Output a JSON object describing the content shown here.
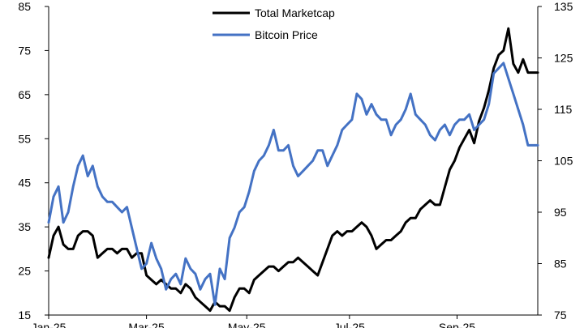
{
  "chart_data": {
    "type": "line",
    "title": "",
    "xlabel": "",
    "grid": false,
    "legend_position": "top-center",
    "y_left": {
      "ylim": [
        15,
        85
      ],
      "ticks": [
        15,
        25,
        35,
        45,
        55,
        65,
        75,
        85
      ],
      "tick_labels": [
        "15",
        "25",
        "35",
        "45",
        "55",
        "65",
        "75",
        "85"
      ]
    },
    "y_right": {
      "ylim": [
        75,
        135
      ],
      "ticks": [
        75,
        85,
        95,
        105,
        115,
        125,
        135
      ],
      "tick_labels": [
        "75",
        "85",
        "95",
        "105",
        "115",
        "125",
        "135"
      ]
    },
    "x_ticks": [
      {
        "x": 0,
        "label": "Jan-25"
      },
      {
        "x": 40,
        "label": "Mar-25"
      },
      {
        "x": 81,
        "label": "May-25"
      },
      {
        "x": 123,
        "label": "Jul-25"
      },
      {
        "x": 167,
        "label": "Sep-25"
      }
    ],
    "x_range": [
      0,
      200
    ],
    "series": [
      {
        "name": "Total Marketcap",
        "axis": "left",
        "color": "#000000",
        "x": [
          0,
          2,
          4,
          6,
          8,
          10,
          12,
          14,
          16,
          18,
          20,
          22,
          24,
          26,
          28,
          30,
          32,
          34,
          36,
          38,
          40,
          42,
          44,
          46,
          48,
          50,
          52,
          54,
          56,
          58,
          60,
          62,
          64,
          66,
          68,
          70,
          72,
          74,
          76,
          78,
          80,
          82,
          84,
          86,
          88,
          90,
          92,
          94,
          96,
          98,
          100,
          102,
          104,
          106,
          108,
          110,
          112,
          114,
          116,
          118,
          120,
          122,
          124,
          126,
          128,
          130,
          132,
          134,
          136,
          138,
          140,
          142,
          144,
          146,
          148,
          150,
          152,
          154,
          156,
          158,
          160,
          162,
          164,
          166,
          168,
          170,
          172,
          174,
          176,
          178,
          180,
          182,
          184,
          186,
          188,
          190,
          192,
          194,
          196,
          198,
          200
        ],
        "values": [
          28,
          33,
          35,
          31,
          30,
          30,
          33,
          34,
          34,
          33,
          28,
          29,
          30,
          30,
          29,
          30,
          30,
          28,
          29,
          29,
          24,
          23,
          22,
          23,
          22,
          21,
          21,
          20,
          22,
          21,
          19,
          18,
          17,
          16,
          18,
          17,
          17,
          16,
          19,
          21,
          21,
          20,
          23,
          24,
          25,
          26,
          26,
          25,
          26,
          27,
          27,
          28,
          27,
          26,
          25,
          24,
          27,
          30,
          33,
          34,
          33,
          34,
          34,
          35,
          36,
          35,
          33,
          30,
          31,
          32,
          32,
          33,
          34,
          36,
          37,
          37,
          39,
          40,
          41,
          40,
          40,
          44,
          48,
          50,
          53,
          55,
          57,
          54,
          59,
          62,
          66,
          71,
          74,
          75,
          80,
          72,
          70,
          73,
          70,
          70,
          70
        ]
      },
      {
        "name": "Bitcoin Price",
        "axis": "right",
        "color": "#4472c4",
        "x": [
          0,
          2,
          4,
          6,
          8,
          10,
          12,
          14,
          16,
          18,
          20,
          22,
          24,
          26,
          28,
          30,
          32,
          34,
          36,
          38,
          40,
          42,
          44,
          46,
          48,
          50,
          52,
          54,
          56,
          58,
          60,
          62,
          64,
          66,
          68,
          70,
          72,
          74,
          76,
          78,
          80,
          82,
          84,
          86,
          88,
          90,
          92,
          94,
          96,
          98,
          100,
          102,
          104,
          106,
          108,
          110,
          112,
          114,
          116,
          118,
          120,
          122,
          124,
          126,
          128,
          130,
          132,
          134,
          136,
          138,
          140,
          142,
          144,
          146,
          148,
          150,
          152,
          154,
          156,
          158,
          160,
          162,
          164,
          166,
          168,
          170,
          172,
          174,
          176,
          178,
          180,
          182,
          184,
          186,
          188,
          190,
          192,
          194,
          196,
          198,
          200
        ],
        "values": [
          93,
          98,
          100,
          93,
          95,
          100,
          104,
          106,
          102,
          104,
          100,
          98,
          97,
          97,
          96,
          95,
          96,
          92,
          88,
          84,
          85,
          89,
          86,
          84,
          80,
          82,
          83,
          81,
          86,
          84,
          83,
          80,
          82,
          83,
          77,
          84,
          82,
          90,
          92,
          95,
          96,
          99,
          103,
          105,
          106,
          108,
          111,
          107,
          107,
          108,
          104,
          102,
          103,
          104,
          105,
          107,
          107,
          104,
          106,
          108,
          111,
          112,
          113,
          118,
          117,
          114,
          116,
          114,
          113,
          113,
          110,
          112,
          113,
          115,
          118,
          114,
          113,
          112,
          110,
          109,
          111,
          112,
          110,
          112,
          113,
          113,
          114,
          111,
          112,
          113,
          116,
          122,
          123,
          124,
          121,
          118,
          115,
          112,
          108,
          108,
          108
        ]
      }
    ],
    "legend": [
      "Total Marketcap",
      "Bitcoin Price"
    ]
  }
}
